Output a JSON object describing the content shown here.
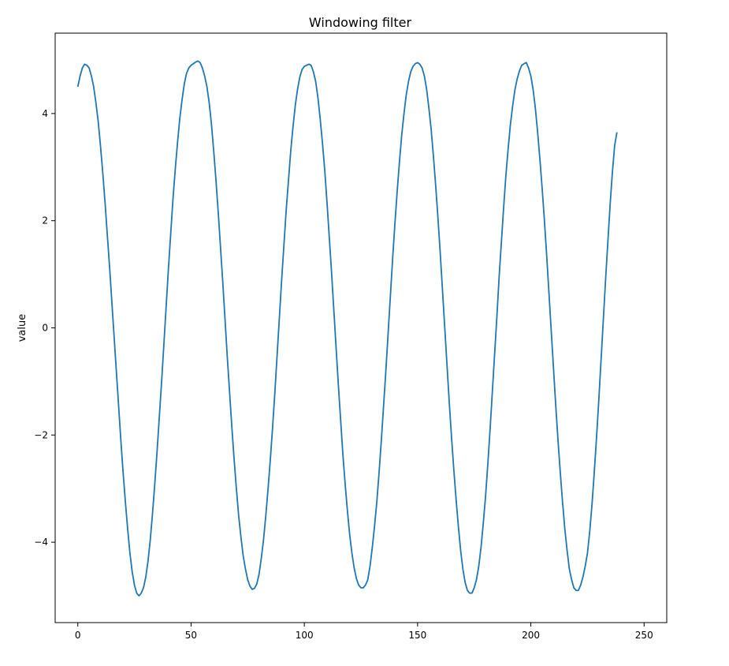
{
  "chart_data": {
    "type": "line",
    "title": "Windowing filter",
    "xlabel": "",
    "ylabel": "value",
    "xlim": [
      -10,
      260
    ],
    "ylim": [
      -5.5,
      5.5
    ],
    "xticks": [
      0,
      50,
      100,
      150,
      200,
      250
    ],
    "yticks": [
      -4,
      -2,
      0,
      2,
      4
    ],
    "xtick_labels": [
      "0",
      "50",
      "100",
      "150",
      "200",
      "250"
    ],
    "ytick_labels": [
      "−4",
      "−2",
      "0",
      "2",
      "4"
    ],
    "grid": false,
    "series": [
      {
        "color": "#1f77b4",
        "x0": 0,
        "dx": 1,
        "values": [
          4.5,
          4.7,
          4.85,
          4.92,
          4.9,
          4.85,
          4.7,
          4.5,
          4.2,
          3.85,
          3.4,
          2.9,
          2.35,
          1.75,
          1.15,
          0.5,
          -0.15,
          -0.8,
          -1.45,
          -2.1,
          -2.7,
          -3.25,
          -3.75,
          -4.2,
          -4.55,
          -4.8,
          -4.95,
          -5.0,
          -4.95,
          -4.85,
          -4.65,
          -4.35,
          -3.95,
          -3.45,
          -2.9,
          -2.3,
          -1.65,
          -1.0,
          -0.3,
          0.4,
          1.1,
          1.75,
          2.4,
          2.95,
          3.45,
          3.9,
          4.25,
          4.55,
          4.75,
          4.85,
          4.9,
          4.93,
          4.96,
          4.98,
          4.95,
          4.85,
          4.7,
          4.5,
          4.2,
          3.8,
          3.3,
          2.75,
          2.15,
          1.5,
          0.85,
          0.15,
          -0.55,
          -1.2,
          -1.85,
          -2.45,
          -3.0,
          -3.5,
          -3.9,
          -4.25,
          -4.5,
          -4.7,
          -4.82,
          -4.88,
          -4.86,
          -4.78,
          -4.6,
          -4.3,
          -3.95,
          -3.5,
          -3.0,
          -2.45,
          -1.85,
          -1.2,
          -0.5,
          0.2,
          0.9,
          1.55,
          2.2,
          2.75,
          3.3,
          3.75,
          4.15,
          4.45,
          4.68,
          4.82,
          4.88,
          4.9,
          4.92,
          4.9,
          4.78,
          4.6,
          4.3,
          3.9,
          3.45,
          2.95,
          2.35,
          1.7,
          1.05,
          0.35,
          -0.35,
          -1.05,
          -1.7,
          -2.35,
          -2.9,
          -3.4,
          -3.85,
          -4.2,
          -4.48,
          -4.68,
          -4.8,
          -4.85,
          -4.85,
          -4.8,
          -4.7,
          -4.45,
          -4.1,
          -3.7,
          -3.25,
          -2.7,
          -2.1,
          -1.45,
          -0.8,
          -0.1,
          0.6,
          1.3,
          1.95,
          2.55,
          3.1,
          3.6,
          4.0,
          4.35,
          4.6,
          4.78,
          4.88,
          4.93,
          4.95,
          4.92,
          4.85,
          4.7,
          4.45,
          4.1,
          3.7,
          3.2,
          2.65,
          2.05,
          1.4,
          0.7,
          0.0,
          -0.7,
          -1.4,
          -2.05,
          -2.65,
          -3.2,
          -3.7,
          -4.15,
          -4.5,
          -4.75,
          -4.9,
          -4.95,
          -4.95,
          -4.85,
          -4.7,
          -4.45,
          -4.1,
          -3.65,
          -3.15,
          -2.55,
          -1.9,
          -1.2,
          -0.5,
          0.2,
          0.95,
          1.6,
          2.25,
          2.85,
          3.35,
          3.8,
          4.15,
          4.45,
          4.65,
          4.8,
          4.9,
          4.93,
          4.95,
          4.85,
          4.7,
          4.45,
          4.1,
          3.65,
          3.15,
          2.6,
          2.0,
          1.35,
          0.65,
          -0.05,
          -0.75,
          -1.45,
          -2.1,
          -2.7,
          -3.25,
          -3.75,
          -4.15,
          -4.5,
          -4.7,
          -4.85,
          -4.9,
          -4.9,
          -4.8,
          -4.65,
          -4.45,
          -4.2,
          -3.8,
          -3.3,
          -2.7,
          -2.05,
          -1.35,
          -0.6,
          0.15,
          0.9,
          1.6,
          2.3,
          2.9,
          3.4,
          3.65
        ]
      }
    ]
  }
}
